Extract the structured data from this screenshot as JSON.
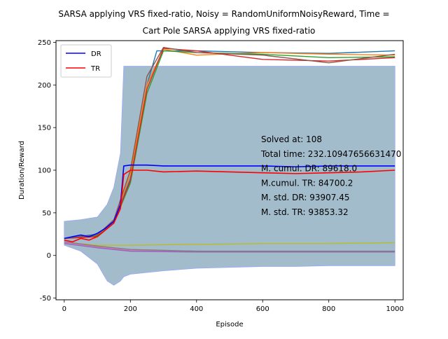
{
  "chart_data": {
    "type": "line",
    "title_line1": "SARSA applying VRS fixed-ratio, Noisy = RandomUniformNoisyReward, Time =",
    "title_line2": "Cart Pole SARSA applying VRS fixed-ratio",
    "xlabel": "Episode",
    "ylabel": "Duration/Reward",
    "xlim": [
      -25,
      1025
    ],
    "ylim": [
      -52,
      252
    ],
    "xticks": [
      0,
      200,
      400,
      600,
      800,
      1000
    ],
    "yticks": [
      -50,
      0,
      50,
      100,
      150,
      200,
      250
    ],
    "legend": {
      "placement": "top-left",
      "entries": [
        {
          "name": "DR",
          "color": "#0000ff"
        },
        {
          "name": "TR",
          "color": "#ff0000"
        }
      ]
    },
    "annotations": [
      "Solved at: 108",
      "Total time: 232.10947656631470",
      "M. cumul. DR: 89618.0",
      "M.cumul. TR: 84700.2",
      "M. std. DR: 93907.45",
      "M. std. TR: 93853.32"
    ],
    "band": {
      "description": "std band",
      "x": [
        0,
        50,
        100,
        130,
        150,
        170,
        180,
        200,
        300,
        400,
        500,
        600,
        700,
        800,
        900,
        1000
      ],
      "upper": [
        40,
        42,
        45,
        60,
        80,
        120,
        222,
        222,
        222,
        222,
        222,
        222,
        222,
        222,
        222,
        222
      ],
      "lower": [
        12,
        5,
        -10,
        -30,
        -35,
        -30,
        -25,
        -22,
        -18,
        -15,
        -14,
        -13,
        -13,
        -12,
        -12,
        -12
      ]
    },
    "series": [
      {
        "name": "DR",
        "color": "#0000ff",
        "x": [
          0,
          25,
          50,
          75,
          100,
          125,
          150,
          170,
          180,
          200,
          250,
          300,
          400,
          500,
          600,
          700,
          800,
          900,
          1000
        ],
        "values": [
          20,
          22,
          24,
          22,
          26,
          32,
          40,
          60,
          105,
          106,
          106,
          105,
          105,
          105,
          105,
          104,
          105,
          105,
          105
        ]
      },
      {
        "name": "TR",
        "color": "#ff0000",
        "x": [
          0,
          25,
          50,
          75,
          100,
          125,
          150,
          170,
          180,
          200,
          250,
          300,
          400,
          500,
          600,
          700,
          800,
          900,
          1000
        ],
        "values": [
          18,
          16,
          20,
          18,
          22,
          30,
          38,
          55,
          95,
          100,
          100,
          98,
          99,
          98,
          97,
          96,
          97,
          98,
          100
        ]
      },
      {
        "color": "#1f77b4",
        "x": [
          0,
          100,
          150,
          200,
          250,
          280,
          400,
          600,
          800,
          1000
        ],
        "values": [
          20,
          25,
          40,
          90,
          200,
          240,
          240,
          238,
          237,
          240
        ]
      },
      {
        "color": "#ff7f0e",
        "x": [
          0,
          100,
          150,
          200,
          250,
          300,
          400,
          600,
          800,
          1000
        ],
        "values": [
          20,
          24,
          40,
          95,
          200,
          242,
          235,
          238,
          236,
          235
        ]
      },
      {
        "color": "#2ca02c",
        "x": [
          0,
          100,
          150,
          200,
          250,
          300,
          400,
          600,
          800,
          1000
        ],
        "values": [
          20,
          23,
          38,
          85,
          190,
          240,
          238,
          236,
          232,
          233
        ]
      },
      {
        "color": "#d62728",
        "x": [
          0,
          100,
          150,
          200,
          250,
          300,
          400,
          600,
          800,
          1000
        ],
        "values": [
          20,
          22,
          38,
          88,
          195,
          243,
          240,
          230,
          228,
          232
        ]
      },
      {
        "color": "#8c564b",
        "x": [
          0,
          100,
          150,
          200,
          250,
          300,
          400,
          600,
          800,
          1000
        ],
        "values": [
          20,
          24,
          42,
          100,
          210,
          244,
          238,
          235,
          226,
          236
        ]
      },
      {
        "color": "#bcbd22",
        "x": [
          0,
          100,
          200,
          400,
          600,
          800,
          1000
        ],
        "values": [
          15,
          12,
          12,
          13,
          14,
          14,
          15
        ]
      },
      {
        "color": "#e377c2",
        "x": [
          0,
          100,
          200,
          400,
          600,
          800,
          1000
        ],
        "values": [
          15,
          10,
          6,
          5,
          4,
          4,
          4
        ]
      },
      {
        "color": "#9467bd",
        "x": [
          0,
          100,
          200,
          400,
          600,
          800,
          1000
        ],
        "values": [
          14,
          9,
          5,
          4,
          4,
          4,
          4
        ]
      },
      {
        "color": "#7f7f7f",
        "x": [
          0,
          100,
          200,
          400,
          600,
          800,
          1000
        ],
        "values": [
          16,
          11,
          7,
          5,
          5,
          5,
          5
        ]
      }
    ]
  }
}
